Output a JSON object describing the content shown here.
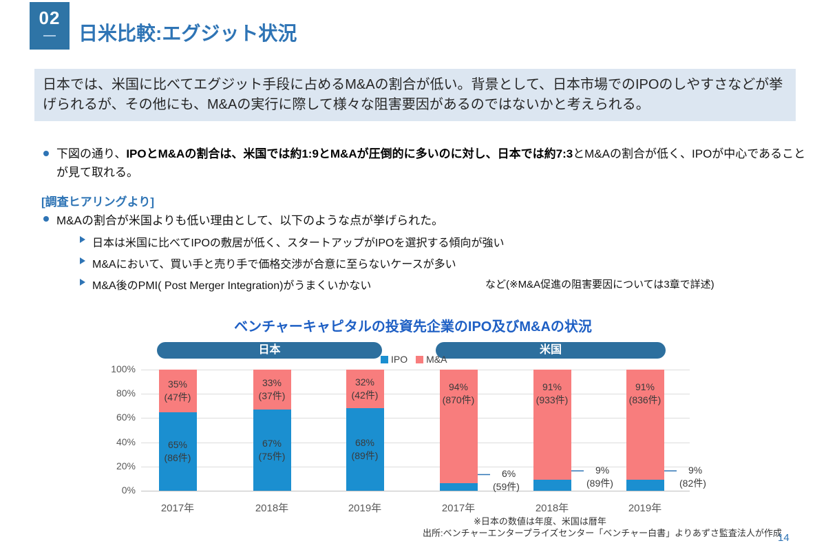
{
  "header": {
    "badge": "02",
    "title": "日米比較:エグジット状況"
  },
  "summary": {
    "text": "日本では、米国に比べてエグジット手段に占めるM&Aの割合が低い。背景として、日本市場でのIPOのしやすさなどが挙げられるが、その他にも、M&Aの実行に際して様々な阻害要因があるのではないかと考えられる。"
  },
  "bullets": {
    "b1_pre": "下図の通り、",
    "b1_bold": "IPOとM&Aの割合は、米国では約1:9とM&Aが圧倒的に多いのに対し、日本では約7:3",
    "b1_post": "とM&Aの割合が低く、IPOが中心であることが見て取れる。",
    "hearing_heading": "[調査ヒアリングより]",
    "b2": "M&Aの割合が米国よりも低い理由として、以下のような点が挙げられた。",
    "sub1": "日本は米国に比べてIPOの敷居が低く、スタートアップがIPOを選択する傾向が強い",
    "sub2": "M&Aにおいて、買い手と売り手で価格交渉が合意に至らないケースが多い",
    "sub3": "M&A後のPMI( Post Merger Integration)がうまくいかない",
    "sub3_note": "など(※M&A促進の阻害要因については3章で詳述)"
  },
  "chart_data": {
    "type": "bar",
    "stacked": true,
    "title": "ベンチャーキャピタルの投資先企業のIPO及びM&Aの状況",
    "legend": [
      "IPO",
      "M&A"
    ],
    "legend_position": "top-center",
    "grid": true,
    "ylim": [
      0,
      100
    ],
    "y_ticks": [
      "100%",
      "80%",
      "60%",
      "40%",
      "20%",
      "0%"
    ],
    "colors": {
      "IPO": "#1b8fd0",
      "M&A": "#f87d7d",
      "pill": "#2d6f9e",
      "leader_line": "#2e74b5"
    },
    "groups": [
      {
        "label": "日本",
        "categories": [
          "2017年",
          "2018年",
          "2019年"
        ],
        "ipo_label_outside": false,
        "ma_label_pos": "center",
        "series": [
          {
            "name": "IPO",
            "values": [
              65,
              67,
              68
            ],
            "counts": [
              "86件",
              "75件",
              "89件"
            ]
          },
          {
            "name": "M&A",
            "values": [
              35,
              33,
              32
            ],
            "counts": [
              "47件",
              "37件",
              "42件"
            ]
          }
        ]
      },
      {
        "label": "米国",
        "categories": [
          "2017年",
          "2018年",
          "2019年"
        ],
        "ipo_label_outside": true,
        "ma_label_pos": "top",
        "series": [
          {
            "name": "IPO",
            "values": [
              6,
              9,
              9
            ],
            "counts": [
              "59件",
              "89件",
              "82件"
            ]
          },
          {
            "name": "M&A",
            "values": [
              94,
              91,
              91
            ],
            "counts": [
              "870件",
              "933件",
              "836件"
            ]
          }
        ]
      }
    ]
  },
  "footnotes": {
    "note1": "※日本の数値は年度、米国は暦年",
    "note2": "出所:ベンチャーエンタープライズセンター「ベンチャー白書」よりあずさ監査法人が作成"
  },
  "page": {
    "number": "14"
  }
}
